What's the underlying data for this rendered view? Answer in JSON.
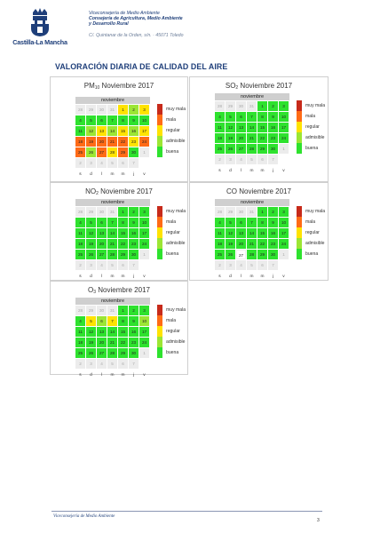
{
  "header": {
    "logo_text": "Castilla-La Mancha",
    "vice": "Viceconsejería de Medio Ambiente",
    "consejeria_1": "Consejería de Agricultura, Medio Ambiente",
    "consejeria_2": "y Desarrollo Rural",
    "address": "C/. Quintanar de la Orden, s/n. · 45071 Toledo"
  },
  "title": "VALORACIÓN DIARIA DE CALIDAD DEL AIRE",
  "calendar": {
    "month": "noviembre",
    "weekdays": [
      "s",
      "d",
      "l",
      "m",
      "m",
      "j",
      "v"
    ],
    "first_row_prev": [
      "28",
      "29",
      "30",
      "31"
    ],
    "days": [
      "1",
      "2",
      "3",
      "4",
      "5",
      "6",
      "7",
      "8",
      "9",
      "10",
      "11",
      "12",
      "13",
      "14",
      "15",
      "16",
      "17",
      "18",
      "19",
      "20",
      "21",
      "22",
      "23",
      "24",
      "25",
      "26",
      "27",
      "28",
      "29",
      "30"
    ],
    "after": [
      "1",
      "2",
      "3",
      "4",
      "5",
      "6",
      "7"
    ]
  },
  "legend": {
    "labels": [
      "muy mala",
      "mala",
      "regular",
      "admisible",
      "buena"
    ],
    "colors": [
      "#c72a1a",
      "#ff6b16",
      "#ffe300",
      "#9ce634",
      "#2ee22e"
    ]
  },
  "panels": [
    {
      "id": "pm10",
      "pre": "PM",
      "sub": "10",
      "post": " Noviembre 2017",
      "levels": [
        "regular",
        "admisible",
        "regular",
        "buena",
        "buena",
        "buena",
        "buena",
        "buena",
        "buena",
        "buena",
        "buena",
        "admisible",
        "regular",
        "admisible",
        "regular",
        "admisible",
        "regular",
        "mala",
        "mala",
        "mala",
        "mala",
        "mala",
        "regular",
        "mala",
        "mala",
        "admisible",
        "mala",
        "regular",
        "mala",
        "buena"
      ]
    },
    {
      "id": "so2",
      "pre": "SO",
      "sub": "2",
      "post": " Noviembre 2017",
      "levels": [
        "buena",
        "buena",
        "buena",
        "buena",
        "buena",
        "buena",
        "buena",
        "buena",
        "buena",
        "buena",
        "buena",
        "buena",
        "buena",
        "buena",
        "buena",
        "buena",
        "buena",
        "buena",
        "buena",
        "buena",
        "buena",
        "buena",
        "buena",
        "buena",
        "buena",
        "buena",
        "buena",
        "buena",
        "buena",
        "buena"
      ]
    },
    {
      "id": "no2",
      "pre": "NO",
      "sub": "2",
      "post": " Noviembre 2017",
      "levels": [
        "buena",
        "buena",
        "buena",
        "buena",
        "buena",
        "buena",
        "buena",
        "buena",
        "buena",
        "buena",
        "buena",
        "buena",
        "buena",
        "buena",
        "buena",
        "buena",
        "buena",
        "buena",
        "buena",
        "buena",
        "buena",
        "buena",
        "buena",
        "buena",
        "buena",
        "buena",
        "buena",
        "buena",
        "buena",
        "buena"
      ]
    },
    {
      "id": "co",
      "pre": "CO",
      "sub": "",
      "post": " Noviembre 2017",
      "levels": [
        "buena",
        "buena",
        "buena",
        "buena",
        "buena",
        "buena",
        "buena",
        "buena",
        "buena",
        "buena",
        "buena",
        "buena",
        "buena",
        "buena",
        "buena",
        "buena",
        "buena",
        "buena",
        "buena",
        "buena",
        "buena",
        "buena",
        "buena",
        "buena",
        "buena",
        "buena",
        "blank",
        "buena",
        "buena",
        "buena"
      ]
    },
    {
      "id": "o3",
      "pre": "O",
      "sub": "3",
      "post": " Noviembre 2017",
      "levels": [
        "buena",
        "buena",
        "buena",
        "buena",
        "regular",
        "admisible",
        "regular",
        "buena",
        "buena",
        "admisible",
        "buena",
        "buena",
        "buena",
        "buena",
        "buena",
        "buena",
        "buena",
        "buena",
        "buena",
        "buena",
        "buena",
        "buena",
        "buena",
        "buena",
        "buena",
        "buena",
        "buena",
        "buena",
        "buena",
        "buena"
      ]
    }
  ],
  "footer": {
    "text": "Viceconsejería de Medio Ambiente",
    "page": "3"
  }
}
